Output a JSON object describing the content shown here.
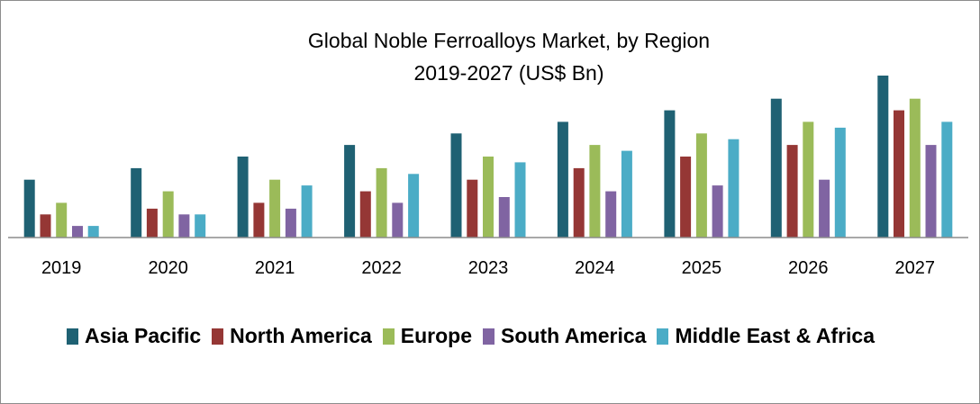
{
  "chart_data": {
    "type": "bar",
    "title": "Global Noble Ferroalloys Market, by Region",
    "subtitle": "2019-2027 (US$ Bn)",
    "categories": [
      "2019",
      "2020",
      "2021",
      "2022",
      "2023",
      "2024",
      "2025",
      "2026",
      "2027"
    ],
    "series": [
      {
        "name": "Asia Pacific",
        "color": "#1f6173",
        "values": [
          5,
          6,
          7,
          8,
          9,
          10,
          11,
          12,
          14
        ]
      },
      {
        "name": "North America",
        "color": "#953735",
        "values": [
          2,
          2.5,
          3,
          4,
          5,
          6,
          7,
          8,
          11
        ]
      },
      {
        "name": "Europe",
        "color": "#9bbb59",
        "values": [
          3,
          4,
          5,
          6,
          7,
          8,
          9,
          10,
          12
        ]
      },
      {
        "name": "South America",
        "color": "#8064a2",
        "values": [
          1,
          2,
          2.5,
          3,
          3.5,
          4,
          4.5,
          5,
          8
        ]
      },
      {
        "name": "Middle East & Africa",
        "color": "#4bacc6",
        "values": [
          1,
          2,
          4.5,
          5.5,
          6.5,
          7.5,
          8.5,
          9.5,
          10
        ]
      }
    ],
    "xlabel": "",
    "ylabel": "",
    "ylim": [
      0,
      14
    ],
    "grid": false,
    "legend": "bottom"
  }
}
